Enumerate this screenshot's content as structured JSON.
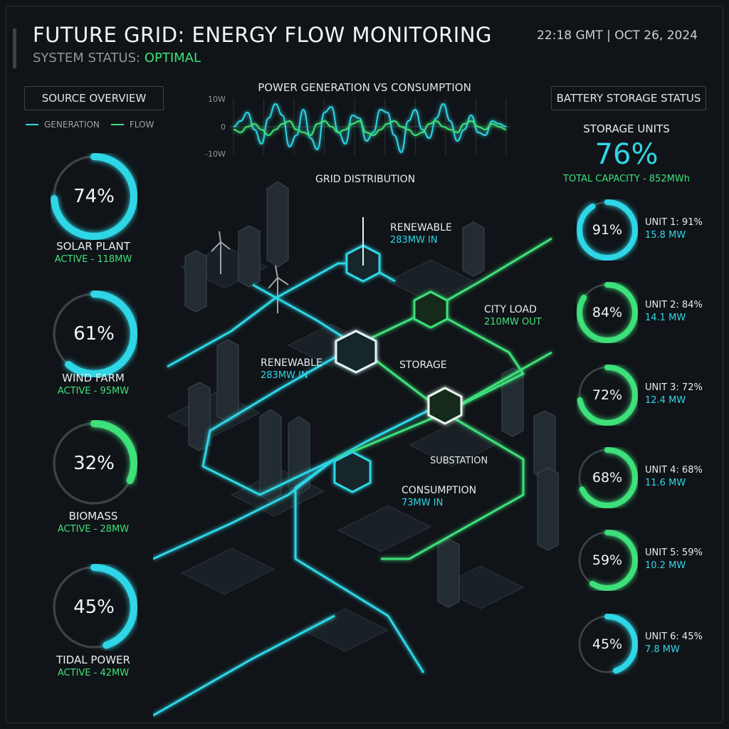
{
  "header": {
    "title": "FUTURE GRID: ENERGY FLOW MONITORING",
    "status_prefix": "SYSTEM STATUS:",
    "status_value": "OPTIMAL",
    "datetime": "22:18 GMT | OCT 26, 2024"
  },
  "colors": {
    "cyan": "#2fd6e6",
    "green": "#3ee07a",
    "track": "#3a4348",
    "background": "#101418"
  },
  "source_overview": {
    "header": "SOURCE OVERVIEW",
    "legend": {
      "generation": "GENERATION",
      "flow": "FLOW"
    },
    "sources": [
      {
        "percent": 74,
        "percent_label": "74%",
        "name": "SOLAR PLANT",
        "status": "ACTIVE - 118MW",
        "color": "#2fd6e6"
      },
      {
        "percent": 61,
        "percent_label": "61%",
        "name": "WIND FARM",
        "status": "ACTIVE - 95MW",
        "color": "#2fd6e6"
      },
      {
        "percent": 32,
        "percent_label": "32%",
        "name": "BIOMASS",
        "status": "ACTIVE - 28MW",
        "color": "#3ee07a"
      },
      {
        "percent": 45,
        "percent_label": "45%",
        "name": "TIDAL POWER",
        "status": "ACTIVE - 42MW",
        "color": "#2fd6e6"
      }
    ]
  },
  "chart_data": {
    "type": "line",
    "title": "POWER GENERATION VS CONSUMPTION",
    "yticks": [
      "10W",
      "0",
      "-10W"
    ],
    "ylim": [
      -10,
      10
    ],
    "x": [
      0,
      1,
      2,
      3,
      4,
      5,
      6,
      7,
      8,
      9,
      10,
      11,
      12,
      13,
      14,
      15,
      16,
      17,
      18,
      19,
      20,
      21,
      22,
      23,
      24,
      25,
      26,
      27,
      28,
      29,
      30,
      31,
      32,
      33,
      34,
      35,
      36,
      37,
      38,
      39
    ],
    "series": [
      {
        "color": "#2fd6e6",
        "values": [
          0,
          2,
          5,
          -1,
          -6,
          3,
          8,
          4,
          -7,
          -3,
          6,
          -4,
          -8,
          5,
          7,
          -2,
          -6,
          4,
          3,
          -5,
          -2,
          6,
          5,
          -3,
          -9,
          2,
          6,
          -1,
          -4,
          3,
          8,
          2,
          -5,
          -1,
          4,
          -2,
          -3,
          2,
          1,
          0
        ]
      },
      {
        "color": "#3ee07a",
        "values": [
          -1,
          -2,
          0,
          1,
          -1,
          -3,
          -1,
          1,
          2,
          -1,
          -2,
          -3,
          1,
          2,
          0,
          -2,
          -1,
          1,
          2,
          -2,
          -3,
          -1,
          1,
          2,
          0,
          -1,
          -3,
          -2,
          1,
          2,
          0,
          -1,
          -2,
          1,
          2,
          0,
          -1,
          1,
          0,
          -1
        ]
      }
    ]
  },
  "grid_map": {
    "title": "GRID DISTRIBUTION",
    "nodes": {
      "renewable_top": {
        "name": "RENEWABLE",
        "value": "283MW IN"
      },
      "renewable_mid": {
        "name": "RENEWABLE",
        "value": "283MW IN"
      },
      "city_load": {
        "name": "CITY LOAD",
        "value": "210MW OUT"
      },
      "storage": {
        "name": "STORAGE"
      },
      "substation": {
        "name": "SUBSTATION"
      },
      "consumption": {
        "name": "CONSUMPTION",
        "value": "73MW IN"
      }
    }
  },
  "battery": {
    "header": "BATTERY STORAGE STATUS",
    "title": "STORAGE UNITS",
    "percent_label": "76%",
    "capacity": "TOTAL CAPACITY - 852MWh",
    "units": [
      {
        "percent": 91,
        "percent_label": "91%",
        "label": "UNIT 1: 91%",
        "mw": "15.8 MW",
        "color": "#2fd6e6"
      },
      {
        "percent": 84,
        "percent_label": "84%",
        "label": "UNIT 2: 84%",
        "mw": "14.1 MW",
        "color": "#3ee07a"
      },
      {
        "percent": 72,
        "percent_label": "72%",
        "label": "UNIT 3: 72%",
        "mw": "12.4 MW",
        "color": "#3ee07a"
      },
      {
        "percent": 68,
        "percent_label": "68%",
        "label": "UNIT 4: 68%",
        "mw": "11.6 MW",
        "color": "#3ee07a"
      },
      {
        "percent": 59,
        "percent_label": "59%",
        "label": "UNIT 5: 59%",
        "mw": "10.2 MW",
        "color": "#3ee07a"
      },
      {
        "percent": 45,
        "percent_label": "45%",
        "label": "UNIT 6: 45%",
        "mw": "7.8 MW",
        "color": "#2fd6e6"
      }
    ]
  }
}
